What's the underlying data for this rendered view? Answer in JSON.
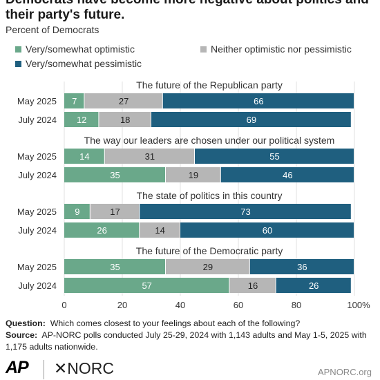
{
  "title": "Democrats have become more negative about politics and their party's future.",
  "subtitle": "Percent of Democrats",
  "legend": [
    {
      "label": "Very/somewhat optimistic",
      "color": "#6aa88a"
    },
    {
      "label": "Neither optimistic nor pessimistic",
      "color": "#b6b6b6"
    },
    {
      "label": "Very/somewhat pessimistic",
      "color": "#1f5f7f"
    }
  ],
  "chart_data": {
    "type": "bar",
    "orientation": "horizontal",
    "stacked": true,
    "xlim": [
      0,
      100
    ],
    "x_ticks": [
      "0",
      "20",
      "40",
      "60",
      "80",
      "100%"
    ],
    "groups": [
      {
        "title": "The future of the Republican party",
        "rows": [
          {
            "label": "May 2025",
            "values": [
              7,
              27,
              66
            ]
          },
          {
            "label": "July 2024",
            "values": [
              12,
              18,
              69
            ]
          }
        ]
      },
      {
        "title": "The way our leaders are chosen under our political system",
        "rows": [
          {
            "label": "May 2025",
            "values": [
              14,
              31,
              55
            ]
          },
          {
            "label": "July 2024",
            "values": [
              35,
              19,
              46
            ]
          }
        ]
      },
      {
        "title": "The state of politics in this country",
        "rows": [
          {
            "label": "May 2025",
            "values": [
              9,
              17,
              73
            ]
          },
          {
            "label": "July 2024",
            "values": [
              26,
              14,
              60
            ]
          }
        ]
      },
      {
        "title": "The future of the Democratic party",
        "rows": [
          {
            "label": "May 2025",
            "values": [
              35,
              29,
              36
            ]
          },
          {
            "label": "July 2024",
            "values": [
              57,
              16,
              26
            ]
          }
        ]
      }
    ]
  },
  "footer": {
    "question_label": "Question:",
    "question_text": "Which comes closest to your feelings about each of the following?",
    "source_label": "Source:",
    "source_text": "AP-NORC polls conducted July 25-29, 2024 with 1,143 adults and May 1-5, 2025 with 1,175 adults nationwide."
  },
  "logos": {
    "ap": "AP",
    "norc": "✕NORC"
  },
  "site_url": "APNORC.org"
}
